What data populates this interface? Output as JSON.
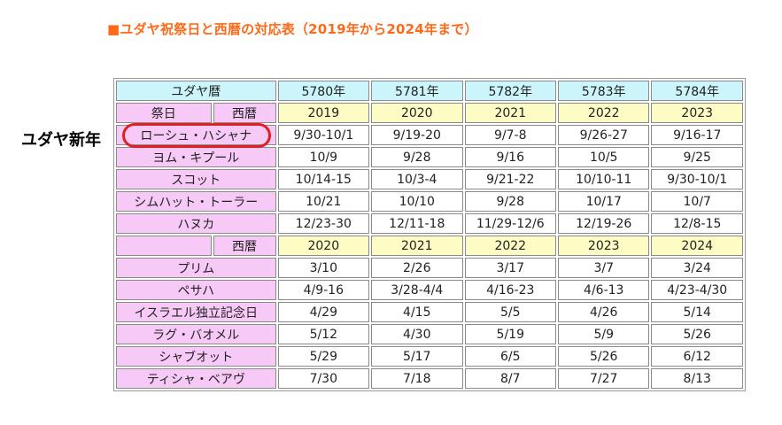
{
  "title": "■ユダヤ祝祭日と西暦の対応表（2019年から2024年まで）",
  "side_label": "ユダヤ新年",
  "table": {
    "hebrew_calendar_label": "ユダヤ暦",
    "hebrew_years": [
      "5780年",
      "5781年",
      "5782年",
      "5783年",
      "5784年"
    ],
    "festival_label": "祭日",
    "gregorian_label": "西暦",
    "gregorian_years_1": [
      "2019",
      "2020",
      "2021",
      "2022",
      "2023"
    ],
    "gregorian_years_2": [
      "2020",
      "2021",
      "2022",
      "2023",
      "2024"
    ],
    "section1_rows": [
      {
        "name": "ローシュ・ハシャナ",
        "values": [
          "9/30-10/1",
          "9/19-20",
          "9/7-8",
          "9/26-27",
          "9/16-17"
        ]
      },
      {
        "name": "ヨム・キプール",
        "values": [
          "10/9",
          "9/28",
          "9/16",
          "10/5",
          "9/25"
        ]
      },
      {
        "name": "スコット",
        "values": [
          "10/14-15",
          "10/3-4",
          "9/21-22",
          "10/10-11",
          "9/30-10/1"
        ]
      },
      {
        "name": "シムハット・トーラー",
        "values": [
          "10/21",
          "10/10",
          "9/28",
          "10/17",
          "10/7"
        ]
      },
      {
        "name": "ハヌカ",
        "values": [
          "12/23-30",
          "12/11-18",
          "11/29-12/6",
          "12/19-26",
          "12/8-15"
        ]
      }
    ],
    "section2_rows": [
      {
        "name": "プリム",
        "values": [
          "3/10",
          "2/26",
          "3/17",
          "3/7",
          "3/24"
        ]
      },
      {
        "name": "ペサハ",
        "values": [
          "4/9-16",
          "3/28-4/4",
          "4/16-23",
          "4/6-13",
          "4/23-4/30"
        ]
      },
      {
        "name": "イスラエル独立記念日",
        "values": [
          "4/29",
          "4/15",
          "5/5",
          "4/26",
          "5/14"
        ]
      },
      {
        "name": "ラグ・バオメル",
        "values": [
          "5/12",
          "4/30",
          "5/19",
          "5/9",
          "5/26"
        ]
      },
      {
        "name": "シャブオット",
        "values": [
          "5/29",
          "5/17",
          "6/5",
          "5/26",
          "6/12"
        ]
      },
      {
        "name": "ティシャ・ベアヴ",
        "values": [
          "7/30",
          "7/18",
          "8/7",
          "7/27",
          "8/13"
        ]
      }
    ]
  },
  "colors": {
    "title": "#ff6a1a",
    "header_cyan": "#ccf5fb",
    "label_pink": "#f7c9f7",
    "year_yellow": "#fcfcc4",
    "festival_text": "#3a3acc",
    "highlight_ring": "#e02020"
  }
}
